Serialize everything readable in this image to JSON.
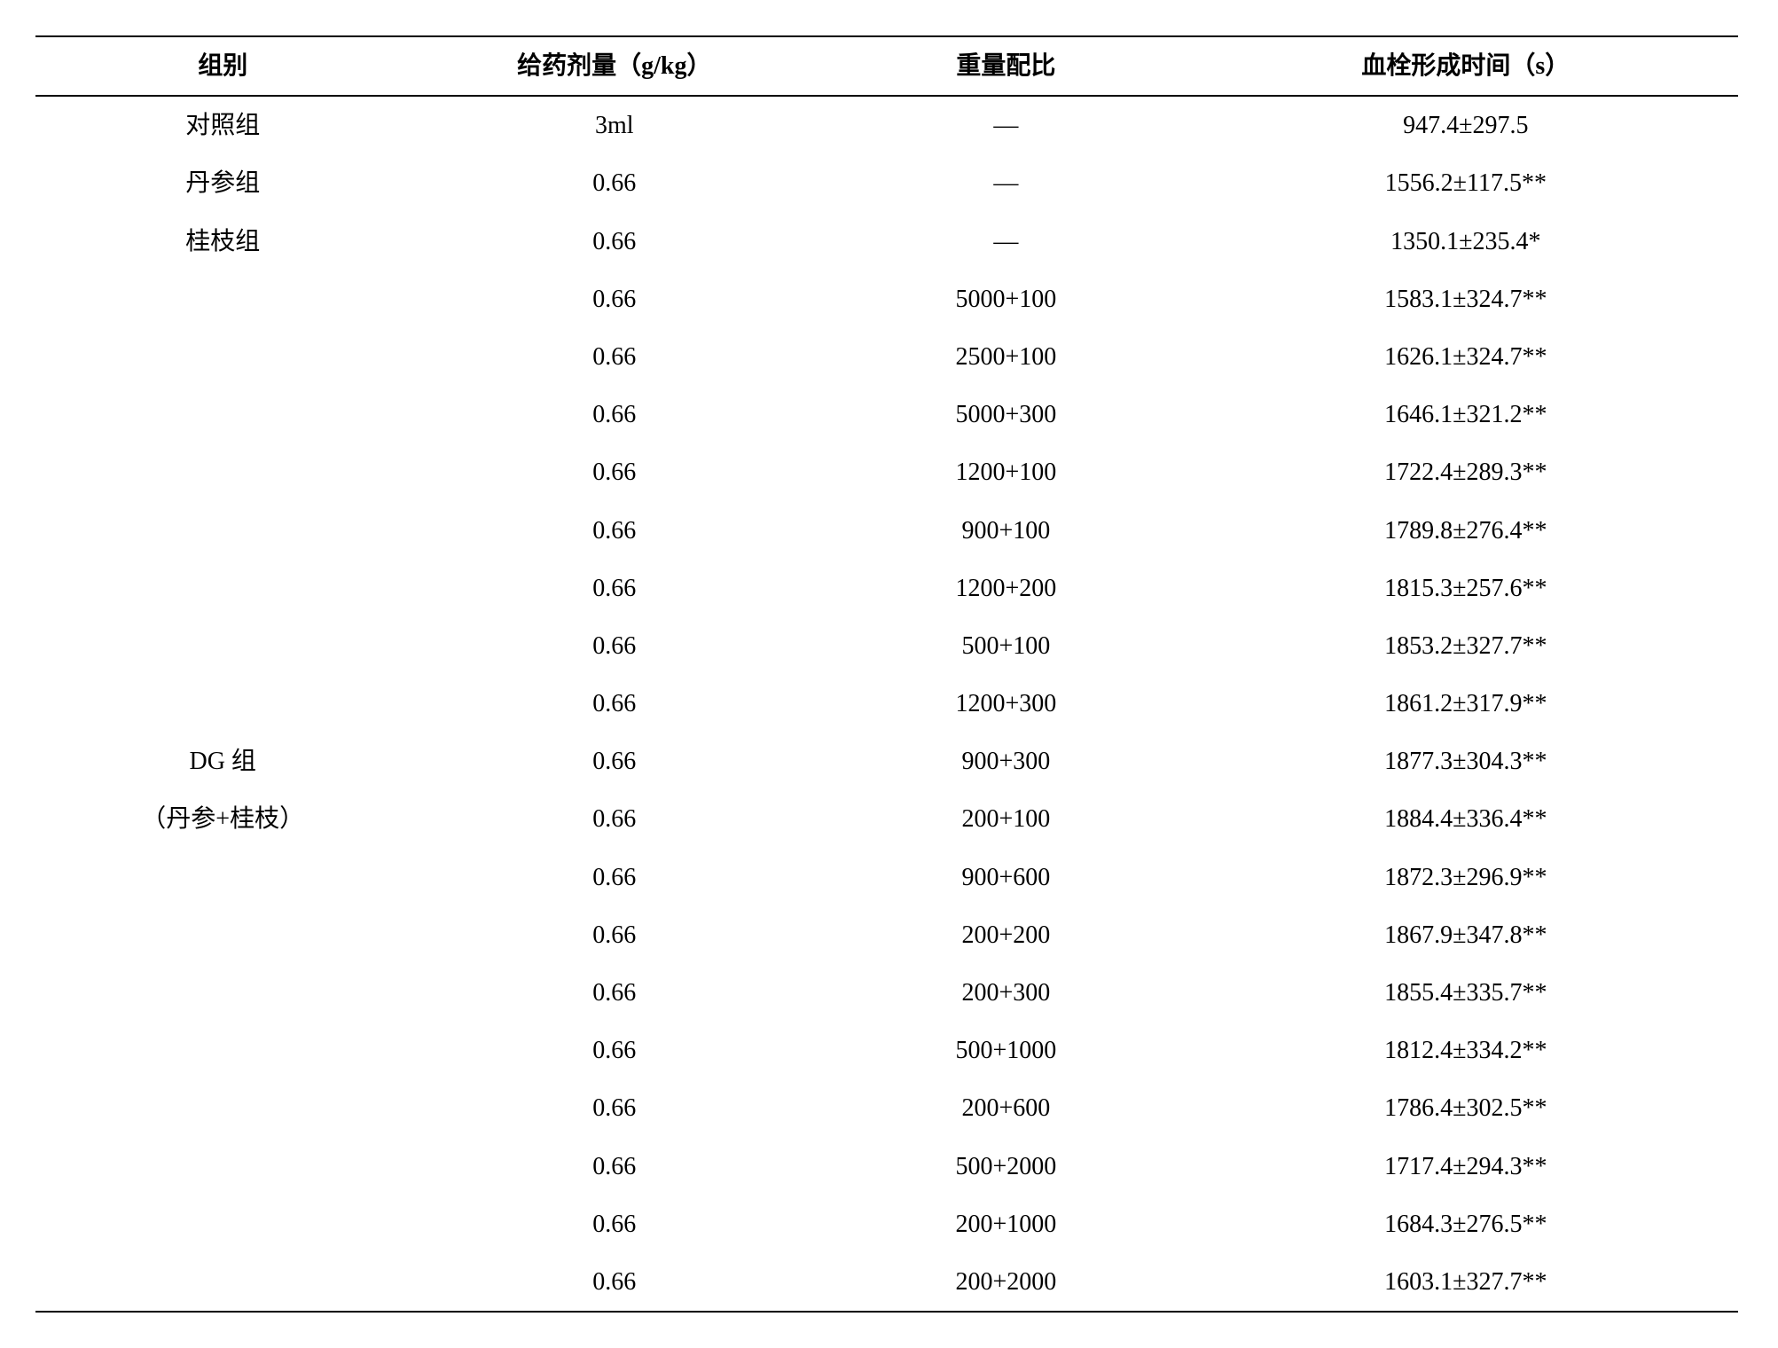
{
  "table": {
    "type": "table",
    "background_color": "#ffffff",
    "text_color": "#000000",
    "border_color": "#000000",
    "fontsize": 28,
    "headers": {
      "group": "组别",
      "dose": "给药剂量（g/kg）",
      "ratio": "重量配比",
      "time": "血栓形成时间（s）"
    },
    "rows": [
      {
        "group": "对照组",
        "dose": "3ml",
        "ratio": "—",
        "time": "947.4±297.5"
      },
      {
        "group": "丹参组",
        "dose": "0.66",
        "ratio": "—",
        "time": "1556.2±117.5**"
      },
      {
        "group": "桂枝组",
        "dose": "0.66",
        "ratio": "—",
        "time": "1350.1±235.4*"
      },
      {
        "group": "",
        "dose": "0.66",
        "ratio": "5000+100",
        "time": "1583.1±324.7**"
      },
      {
        "group": "",
        "dose": "0.66",
        "ratio": "2500+100",
        "time": "1626.1±324.7**"
      },
      {
        "group": "",
        "dose": "0.66",
        "ratio": "5000+300",
        "time": "1646.1±321.2**"
      },
      {
        "group": "",
        "dose": "0.66",
        "ratio": "1200+100",
        "time": "1722.4±289.3**"
      },
      {
        "group": "",
        "dose": "0.66",
        "ratio": "900+100",
        "time": "1789.8±276.4**"
      },
      {
        "group": "",
        "dose": "0.66",
        "ratio": "1200+200",
        "time": "1815.3±257.6**"
      },
      {
        "group": "",
        "dose": "0.66",
        "ratio": "500+100",
        "time": "1853.2±327.7**"
      },
      {
        "group": "",
        "dose": "0.66",
        "ratio": "1200+300",
        "time": "1861.2±317.9**"
      },
      {
        "group": "DG 组",
        "dose": "0.66",
        "ratio": "900+300",
        "time": "1877.3±304.3**"
      },
      {
        "group": "（丹参+桂枝）",
        "dose": "0.66",
        "ratio": "200+100",
        "time": "1884.4±336.4**"
      },
      {
        "group": "",
        "dose": "0.66",
        "ratio": "900+600",
        "time": "1872.3±296.9**"
      },
      {
        "group": "",
        "dose": "0.66",
        "ratio": "200+200",
        "time": "1867.9±347.8**"
      },
      {
        "group": "",
        "dose": "0.66",
        "ratio": "200+300",
        "time": "1855.4±335.7**"
      },
      {
        "group": "",
        "dose": "0.66",
        "ratio": "500+1000",
        "time": "1812.4±334.2**"
      },
      {
        "group": "",
        "dose": "0.66",
        "ratio": "200+600",
        "time": "1786.4±302.5**"
      },
      {
        "group": "",
        "dose": "0.66",
        "ratio": "500+2000",
        "time": "1717.4±294.3**"
      },
      {
        "group": "",
        "dose": "0.66",
        "ratio": "200+1000",
        "time": "1684.3±276.5**"
      },
      {
        "group": "",
        "dose": "0.66",
        "ratio": "200+2000",
        "time": "1603.1±327.7**"
      }
    ]
  }
}
